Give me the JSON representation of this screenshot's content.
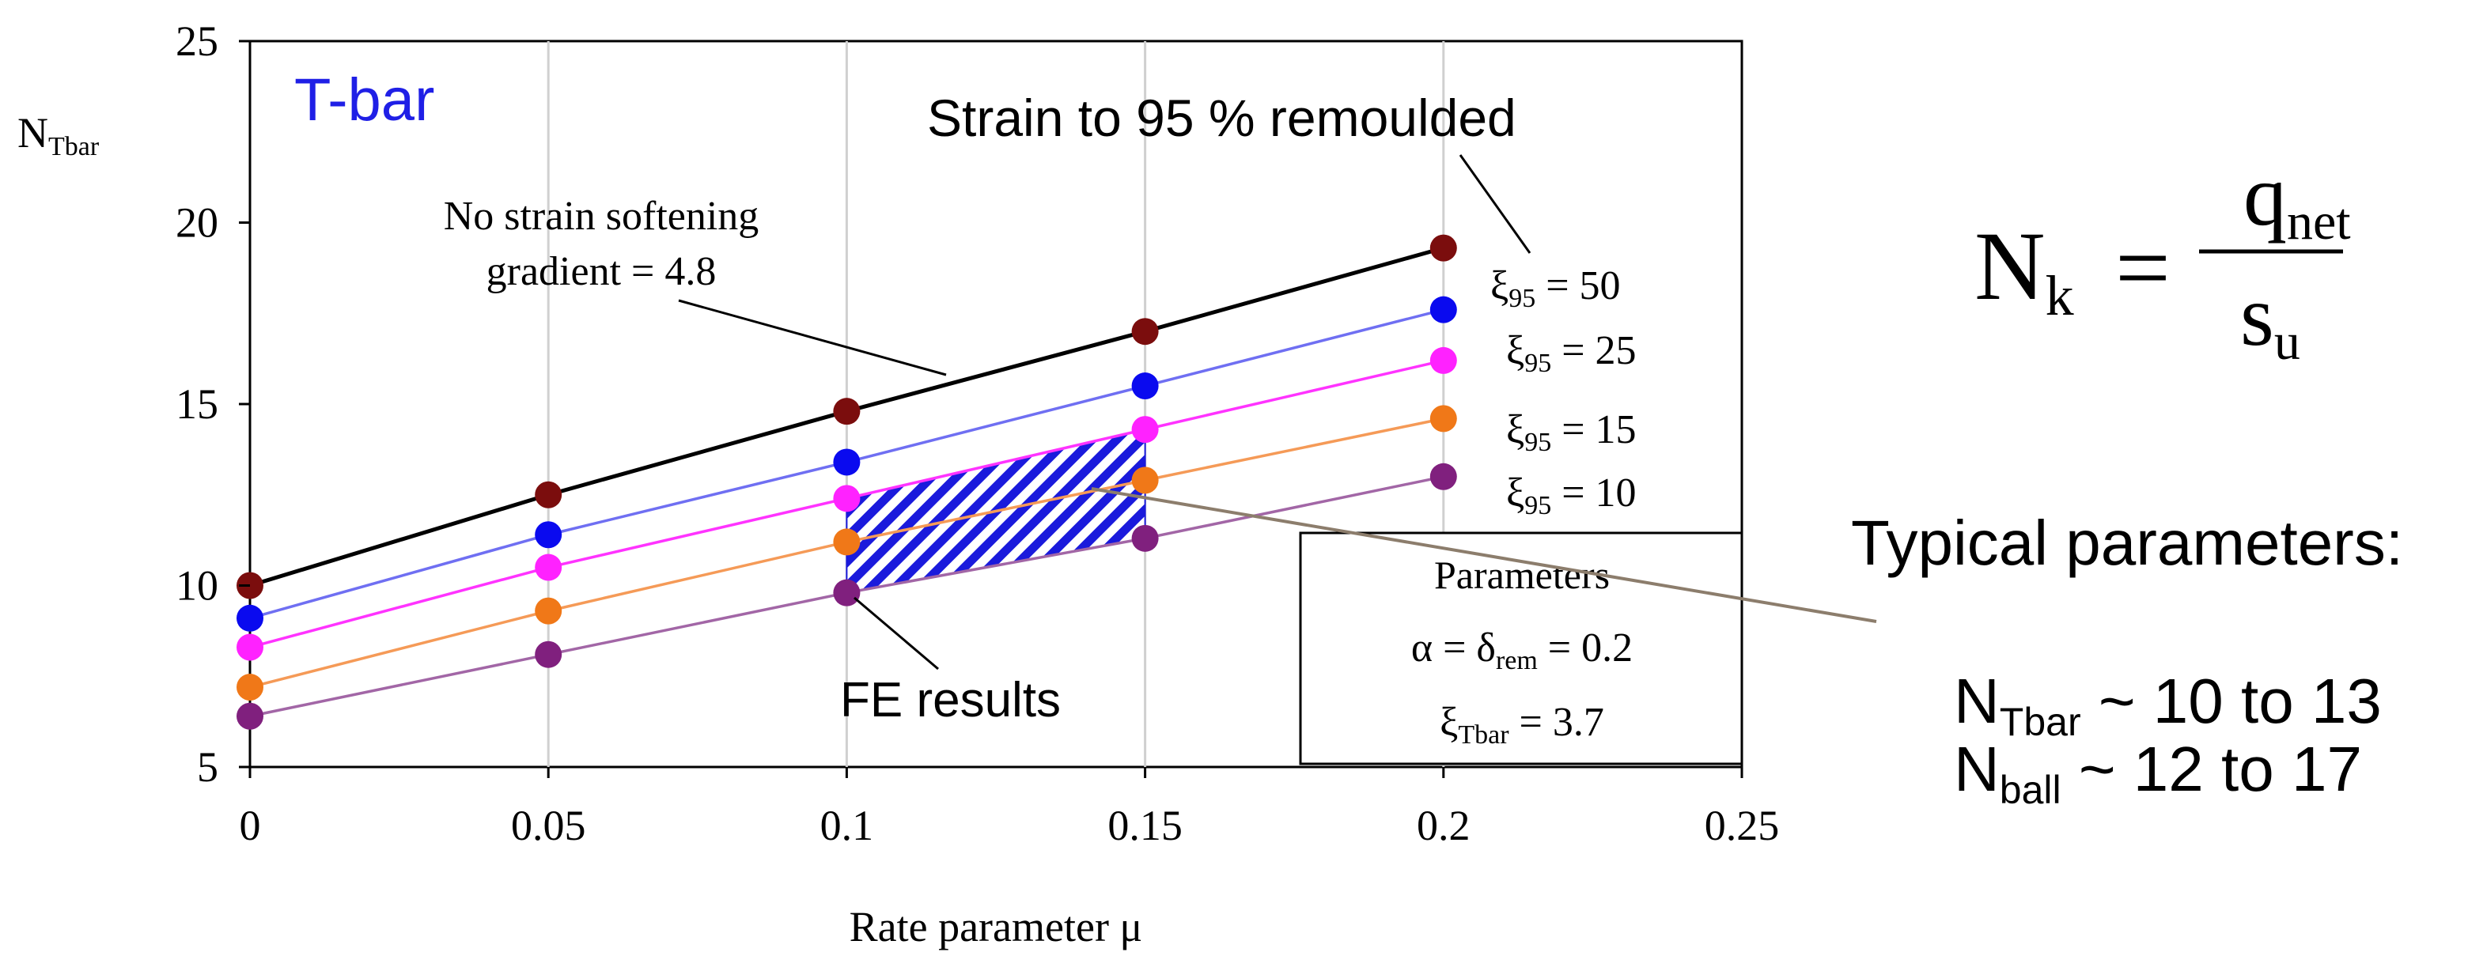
{
  "chart_data": {
    "type": "line",
    "title": "T-bar",
    "xlabel": "Rate parameter μ",
    "ylabel": "N",
    "ylabel_sub": "Tbar",
    "xlim": [
      0,
      0.25
    ],
    "ylim": [
      5,
      25
    ],
    "x_ticks": [
      0,
      0.05,
      0.1,
      0.15,
      0.2,
      0.25
    ],
    "x_tick_labels": [
      "0",
      "0.05",
      "0.1",
      "0.15",
      "0.2",
      "0.25"
    ],
    "y_ticks": [
      5,
      10,
      15,
      20,
      25
    ],
    "y_tick_labels": [
      "5",
      "10",
      "15",
      "20",
      "25"
    ],
    "grid": "vertical",
    "x": [
      0,
      0.05,
      0.1,
      0.15,
      0.2
    ],
    "series": [
      {
        "name": "No strain softening",
        "color": "#000000",
        "marker_color": "#7b0d0d",
        "values": [
          10.0,
          12.5,
          14.8,
          17.0,
          19.3
        ]
      },
      {
        "name": "ξ95 = 50",
        "color": "#6f6ff2",
        "marker_color": "#0a0aef",
        "values": [
          9.1,
          11.4,
          13.4,
          15.5,
          17.6
        ]
      },
      {
        "name": "ξ95 = 25",
        "color": "#ff33ff",
        "marker_color": "#ff22ff",
        "values": [
          8.3,
          10.5,
          12.4,
          14.3,
          16.2
        ]
      },
      {
        "name": "ξ95 = 15",
        "color": "#f59a57",
        "marker_color": "#f07818",
        "values": [
          7.2,
          9.3,
          11.2,
          12.9,
          14.6
        ]
      },
      {
        "name": "ξ95 = 10",
        "color": "#a266a6",
        "marker_color": "#80207e",
        "values": [
          6.4,
          8.1,
          9.8,
          11.3,
          13.0
        ]
      }
    ],
    "curve_labels": [
      {
        "main": "ξ",
        "sub": "95",
        "tail": " = 50"
      },
      {
        "main": "ξ",
        "sub": "95",
        "tail": " = 25"
      },
      {
        "main": "ξ",
        "sub": "95",
        "tail": " = 15"
      },
      {
        "main": "ξ",
        "sub": "95",
        "tail": " = 10"
      }
    ],
    "shaded_region": {
      "label": "FE results",
      "x_range": [
        0.1,
        0.15
      ],
      "fill": "#1a1adc",
      "hatch": "diagonal"
    },
    "annotations": {
      "no_softening": [
        "No strain softening",
        "gradient = 4.8"
      ],
      "strain": "Strain to 95 % remoulded",
      "fe_results": "FE results",
      "params_title": "Parameters",
      "params_alpha": {
        "text": "α = δ",
        "sub": "rem",
        "tail": " = 0.2"
      },
      "params_xi": {
        "text": "ξ",
        "sub": "Tbar",
        "tail": " = 3.7"
      }
    }
  },
  "side": {
    "formula": {
      "lhs": "N",
      "lhs_sub": "k",
      "eq": "=",
      "num": "q",
      "num_sub": "net",
      "den": "s",
      "den_sub": "u"
    },
    "typical_title": "Typical parameters:",
    "ntbar": {
      "main": "N",
      "sub": "Tbar",
      "tail": " ~ 10 to 13"
    },
    "nball": {
      "main": "N",
      "sub": "ball",
      "tail": " ~ 12 to 17"
    }
  },
  "colors": {
    "title": "#1f1fe6",
    "axis": "#000000",
    "grid": "#d0d0d0",
    "pointer": "#8c7d6c"
  }
}
